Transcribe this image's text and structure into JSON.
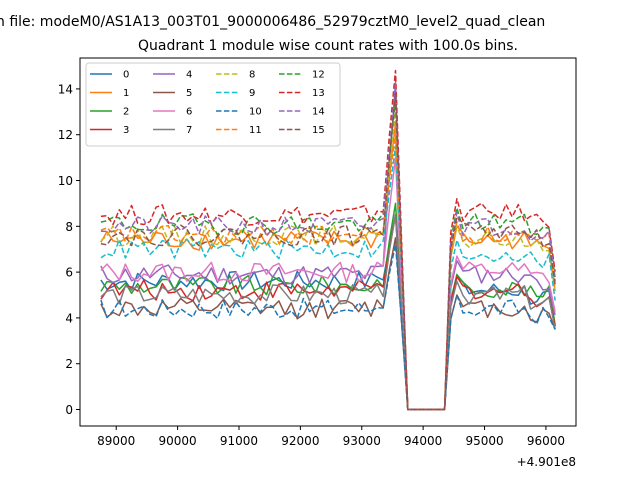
{
  "chart_data": {
    "type": "line",
    "suptitle": "n file: modeM0/AS1A13_003T01_9000006486_52979cztM0_level2_quad_clean",
    "title": "Quadrant 1 module wise count rates with 100.0s bins.",
    "xlabel": "",
    "ylabel": "",
    "x_offset_label": "+4.901e8",
    "x_start": 88750,
    "x_step": 100,
    "x_count": 75,
    "xlim": [
      88410,
      96490
    ],
    "ylim": [
      -0.72,
      15.35
    ],
    "x_ticks": [
      89000,
      90000,
      91000,
      92000,
      93000,
      94000,
      95000,
      96000
    ],
    "x_tick_labels": [
      "89000",
      "90000",
      "91000",
      "92000",
      "93000",
      "94000",
      "95000",
      "96000"
    ],
    "y_ticks": [
      0,
      2,
      4,
      6,
      8,
      10,
      12,
      14
    ],
    "y_tick_labels": [
      "0",
      "2",
      "4",
      "6",
      "8",
      "10",
      "12",
      "14"
    ],
    "legend_position": "upper-left",
    "series": [
      {
        "name": "0",
        "color": "#1f77b4",
        "dash": false,
        "baseline": 5.6,
        "peak": 8.5,
        "recovery": 5.2
      },
      {
        "name": "1",
        "color": "#ff7f0e",
        "dash": false,
        "baseline": 7.4,
        "peak": 12.5,
        "recovery": 7.4
      },
      {
        "name": "2",
        "color": "#2ca02c",
        "dash": false,
        "baseline": 5.4,
        "peak": 9.0,
        "recovery": 5.3
      },
      {
        "name": "3",
        "color": "#d62728",
        "dash": false,
        "baseline": 5.2,
        "peak": 8.5,
        "recovery": 5.2
      },
      {
        "name": "4",
        "color": "#9467bd",
        "dash": false,
        "baseline": 5.9,
        "peak": 14.3,
        "recovery": 5.9
      },
      {
        "name": "5",
        "color": "#8c564b",
        "dash": false,
        "baseline": 4.4,
        "peak": 7.5,
        "recovery": 4.4
      },
      {
        "name": "6",
        "color": "#e377c2",
        "dash": false,
        "baseline": 6.0,
        "peak": 11.0,
        "recovery": 6.1
      },
      {
        "name": "7",
        "color": "#7f7f7f",
        "dash": false,
        "baseline": 5.0,
        "peak": 8.5,
        "recovery": 5.0
      },
      {
        "name": "8",
        "color": "#bcbd22",
        "dash": true,
        "baseline": 7.6,
        "peak": 13.0,
        "recovery": 7.4
      },
      {
        "name": "9",
        "color": "#17becf",
        "dash": true,
        "baseline": 7.0,
        "peak": 11.5,
        "recovery": 6.8
      },
      {
        "name": "10",
        "color": "#1f77b4",
        "dash": true,
        "baseline": 4.4,
        "peak": 7.2,
        "recovery": 4.4
      },
      {
        "name": "11",
        "color": "#ff7f0e",
        "dash": true,
        "baseline": 7.6,
        "peak": 12.0,
        "recovery": 7.6
      },
      {
        "name": "12",
        "color": "#2ca02c",
        "dash": true,
        "baseline": 8.1,
        "peak": 13.5,
        "recovery": 8.2
      },
      {
        "name": "13",
        "color": "#d62728",
        "dash": true,
        "baseline": 8.5,
        "peak": 14.8,
        "recovery": 8.6
      },
      {
        "name": "14",
        "color": "#9467bd",
        "dash": true,
        "baseline": 8.0,
        "peak": 14.2,
        "recovery": 8.0
      },
      {
        "name": "15",
        "color": "#8c564b",
        "dash": true,
        "baseline": 7.6,
        "peak": 13.8,
        "recovery": 7.8
      }
    ],
    "profile_notes": "rates ramp to the peak near 93550, drop to 0 from ~93750 to ~94350, then recover"
  }
}
